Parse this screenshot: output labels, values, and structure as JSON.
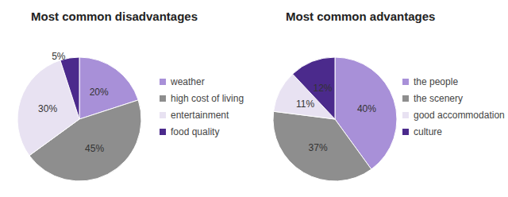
{
  "chart_data": [
    {
      "type": "pie",
      "title": "Most common disadvantages",
      "categories": [
        "weather",
        "high cost of living",
        "entertainment",
        "food quality"
      ],
      "values": [
        20,
        45,
        30,
        5
      ],
      "value_labels": [
        "20%",
        "45%",
        "30%",
        "5%"
      ],
      "colors": [
        "#a890d8",
        "#8e8e8e",
        "#e8e2f2",
        "#4b2a8c"
      ],
      "data_labels": true,
      "legend": "right"
    },
    {
      "type": "pie",
      "title": "Most common advantages",
      "categories": [
        "the people",
        "the scenery",
        "good accommodation",
        "culture"
      ],
      "values": [
        40,
        37,
        11,
        12
      ],
      "value_labels": [
        "40%",
        "37%",
        "11%",
        "12%"
      ],
      "colors": [
        "#a890d8",
        "#8e8e8e",
        "#e8e2f2",
        "#4b2a8c"
      ],
      "data_labels": true,
      "legend": "right"
    }
  ]
}
